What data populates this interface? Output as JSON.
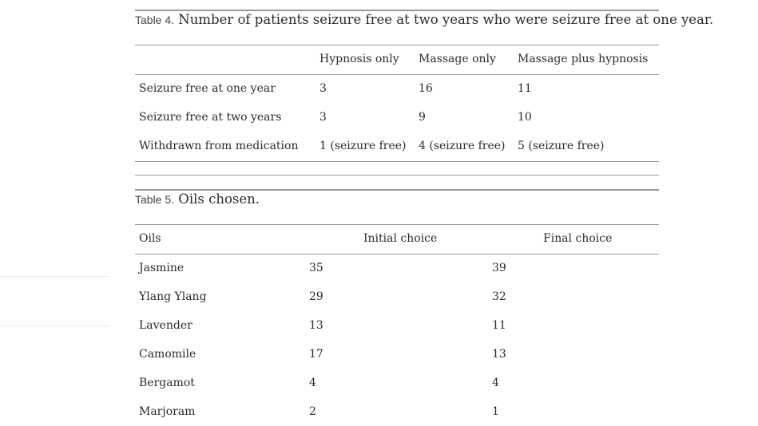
{
  "table4": {
    "label": "Table 4.",
    "title": "Number of patients seizure free at two years who were seizure free at one year.",
    "headers": [
      "",
      "Hypnosis only",
      "Massage only",
      "Massage plus hypnosis"
    ],
    "rows": [
      [
        "Seizure free at one year",
        "3",
        "16",
        "11"
      ],
      [
        "Seizure free at two years",
        "3",
        "9",
        "10"
      ],
      [
        "Withdrawn from medication",
        "1 (seizure free)",
        "4 (seizure free)",
        "5 (seizure free)"
      ]
    ]
  },
  "table5": {
    "label": "Table 5.",
    "title": "Oils chosen.",
    "headers": [
      "Oils",
      "Initial choice",
      "Final choice"
    ],
    "rows": [
      [
        "Jasmine",
        "35",
        "39"
      ],
      [
        "Ylang Ylang",
        "29",
        "32"
      ],
      [
        "Lavender",
        "13",
        "11"
      ],
      [
        "Camomile",
        "17",
        "13"
      ],
      [
        "Bergamot",
        "4",
        "4"
      ],
      [
        "Marjoram",
        "2",
        "1"
      ]
    ]
  }
}
